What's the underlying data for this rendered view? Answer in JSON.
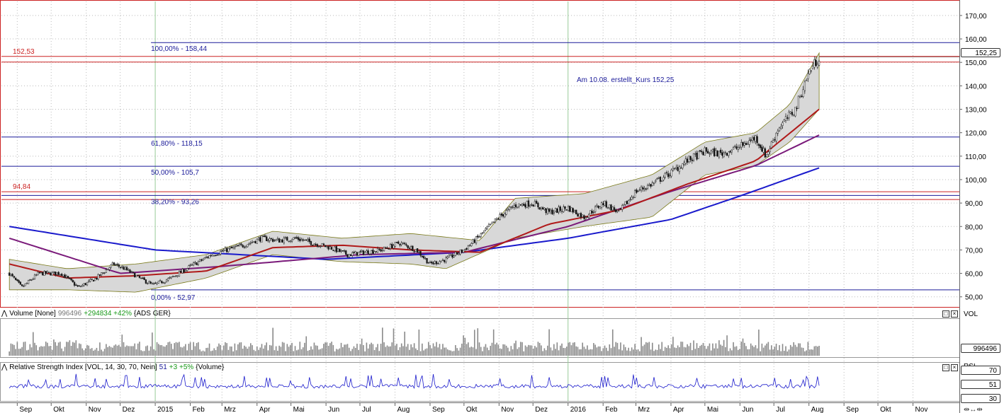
{
  "chart_data": [
    {
      "type": "candlestick",
      "instrument": "ADS GER",
      "x_ticks": [
        "Sep",
        "Okt",
        "Nov",
        "Dez",
        "2015",
        "Feb",
        "Mrz",
        "Apr",
        "Mai",
        "Jun",
        "Jul",
        "Aug",
        "Sep",
        "Okt",
        "Nov",
        "Dez",
        "2016",
        "Feb",
        "Mrz",
        "Apr",
        "Mai",
        "Jun",
        "Jul",
        "Aug",
        "Sep",
        "Okt",
        "Nov"
      ],
      "y_ticks": [
        "170,00",
        "160,00",
        "150,00",
        "140,00",
        "130,00",
        "120,00",
        "110,00",
        "100,00",
        "90,00",
        "80,00",
        "70,00",
        "60,00",
        "50,00"
      ],
      "ylim": [
        46,
        176
      ],
      "last_price": 152.25,
      "last_price_label": "152,25",
      "close_path": [
        [
          "2014-08-25",
          60
        ],
        [
          "2014-09-05",
          54
        ],
        [
          "2014-09-20",
          60
        ],
        [
          "2014-10-10",
          60
        ],
        [
          "2014-10-25",
          54
        ],
        [
          "2014-11-10",
          58
        ],
        [
          "2014-11-25",
          64
        ],
        [
          "2014-12-05",
          62
        ],
        [
          "2014-12-18",
          58
        ],
        [
          "2014-12-30",
          55
        ],
        [
          "2015-01-15",
          58
        ],
        [
          "2015-02-01",
          63
        ],
        [
          "2015-02-20",
          68
        ],
        [
          "2015-03-05",
          70
        ],
        [
          "2015-03-20",
          72
        ],
        [
          "2015-04-05",
          75
        ],
        [
          "2015-04-20",
          74
        ],
        [
          "2015-05-05",
          75
        ],
        [
          "2015-05-20",
          73
        ],
        [
          "2015-06-05",
          71
        ],
        [
          "2015-06-20",
          68
        ],
        [
          "2015-07-05",
          69
        ],
        [
          "2015-07-20",
          70
        ],
        [
          "2015-08-05",
          73
        ],
        [
          "2015-08-20",
          70
        ],
        [
          "2015-09-01",
          64
        ],
        [
          "2015-09-15",
          66
        ],
        [
          "2015-10-01",
          70
        ],
        [
          "2015-10-15",
          76
        ],
        [
          "2015-11-01",
          84
        ],
        [
          "2015-11-15",
          89
        ],
        [
          "2015-12-01",
          90
        ],
        [
          "2015-12-15",
          86
        ],
        [
          "2016-01-01",
          88
        ],
        [
          "2016-01-15",
          84
        ],
        [
          "2016-02-01",
          90
        ],
        [
          "2016-02-15",
          86
        ],
        [
          "2016-03-01",
          95
        ],
        [
          "2016-03-15",
          98
        ],
        [
          "2016-04-01",
          103
        ],
        [
          "2016-04-15",
          108
        ],
        [
          "2016-05-01",
          112
        ],
        [
          "2016-05-15",
          111
        ],
        [
          "2016-06-01",
          114
        ],
        [
          "2016-06-15",
          118
        ],
        [
          "2016-06-24",
          110
        ],
        [
          "2016-07-05",
          122
        ],
        [
          "2016-07-20",
          130
        ],
        [
          "2016-08-01",
          146
        ],
        [
          "2016-08-10",
          152.25
        ]
      ],
      "ma_200": [
        [
          "2014-08-25",
          80
        ],
        [
          "2015-01-01",
          70
        ],
        [
          "2015-06-01",
          66
        ],
        [
          "2015-10-01",
          69
        ],
        [
          "2016-01-01",
          75
        ],
        [
          "2016-04-01",
          83
        ],
        [
          "2016-06-01",
          93
        ],
        [
          "2016-08-10",
          105
        ]
      ],
      "ma_100": [
        [
          "2014-08-25",
          75
        ],
        [
          "2014-12-01",
          60
        ],
        [
          "2015-03-01",
          63
        ],
        [
          "2015-07-01",
          68
        ],
        [
          "2015-10-01",
          69
        ],
        [
          "2016-01-01",
          80
        ],
        [
          "2016-04-01",
          95
        ],
        [
          "2016-06-15",
          106
        ],
        [
          "2016-08-10",
          119
        ]
      ],
      "ma_38": [
        [
          "2014-08-25",
          64
        ],
        [
          "2014-10-15",
          58
        ],
        [
          "2014-12-15",
          59
        ],
        [
          "2015-02-15",
          61
        ],
        [
          "2015-04-15",
          71
        ],
        [
          "2015-06-15",
          72
        ],
        [
          "2015-08-15",
          70
        ],
        [
          "2015-10-15",
          69
        ],
        [
          "2015-12-15",
          81
        ],
        [
          "2016-02-15",
          87
        ],
        [
          "2016-04-15",
          98
        ],
        [
          "2016-06-15",
          108
        ],
        [
          "2016-08-10",
          130
        ]
      ],
      "bollinger_upper": [
        [
          "2014-08-25",
          66
        ],
        [
          "2014-10-15",
          62
        ],
        [
          "2014-12-15",
          64
        ],
        [
          "2015-02-15",
          68
        ],
        [
          "2015-04-15",
          78
        ],
        [
          "2015-06-15",
          75
        ],
        [
          "2015-08-15",
          77
        ],
        [
          "2015-10-15",
          74
        ],
        [
          "2015-11-15",
          92
        ],
        [
          "2016-01-15",
          94
        ],
        [
          "2016-03-15",
          102
        ],
        [
          "2016-05-01",
          116
        ],
        [
          "2016-06-15",
          120
        ],
        [
          "2016-07-15",
          132
        ],
        [
          "2016-08-10",
          154
        ]
      ],
      "bollinger_lower": [
        [
          "2014-08-25",
          53
        ],
        [
          "2014-10-15",
          53
        ],
        [
          "2014-12-15",
          52
        ],
        [
          "2015-02-15",
          58
        ],
        [
          "2015-04-15",
          68
        ],
        [
          "2015-06-15",
          65
        ],
        [
          "2015-08-15",
          64
        ],
        [
          "2015-09-15",
          62
        ],
        [
          "2015-11-15",
          75
        ],
        [
          "2016-01-15",
          80
        ],
        [
          "2016-03-15",
          84
        ],
        [
          "2016-05-01",
          102
        ],
        [
          "2016-06-15",
          106
        ],
        [
          "2016-07-15",
          116
        ],
        [
          "2016-08-10",
          130
        ]
      ],
      "fibonacci": [
        {
          "label": "100,00% - 158,44",
          "value": 158.44
        },
        {
          "label": "61,80% - 118,15",
          "value": 118.15
        },
        {
          "label": "50,00% - 105,7",
          "value": 105.7
        },
        {
          "label": "38,20% - 93,26",
          "value": 93.26
        },
        {
          "label": "0,00% - 52,97",
          "value": 52.97
        }
      ],
      "horizontal_lines": [
        {
          "label": "152,53",
          "value": 152.53
        },
        {
          "label": "94,84",
          "value": 94.84
        }
      ],
      "annotation": "Am 10.08. erstellt_Kurs 152,25"
    },
    {
      "type": "bar",
      "title": "Volume",
      "header": [
        "Volume [None]",
        "996496",
        "+294834 +42%",
        "{ADS GER}"
      ],
      "last_label": "996496",
      "axis_label": "VOL"
    },
    {
      "type": "line",
      "title": "Relative Strength Index",
      "header": [
        "Relative Strength Index [VOL, 14, 30, 70, Nein]",
        "51",
        "+3 +5%",
        "{Volume}"
      ],
      "levels": [
        "70",
        "51",
        "30"
      ],
      "axis_label": "RSI",
      "last_value": 51
    }
  ],
  "colors": {
    "candle": "#1a1a1a",
    "ma_200": "#1a1acc",
    "ma_100": "#7a1a7a",
    "ma_38": "#b01a1a",
    "fib": "#1a1a99",
    "red_level": "#cc2222",
    "volume": "#8a8a8a",
    "rsi": "#1a1acc",
    "band_fill": "#d8d8d8"
  }
}
